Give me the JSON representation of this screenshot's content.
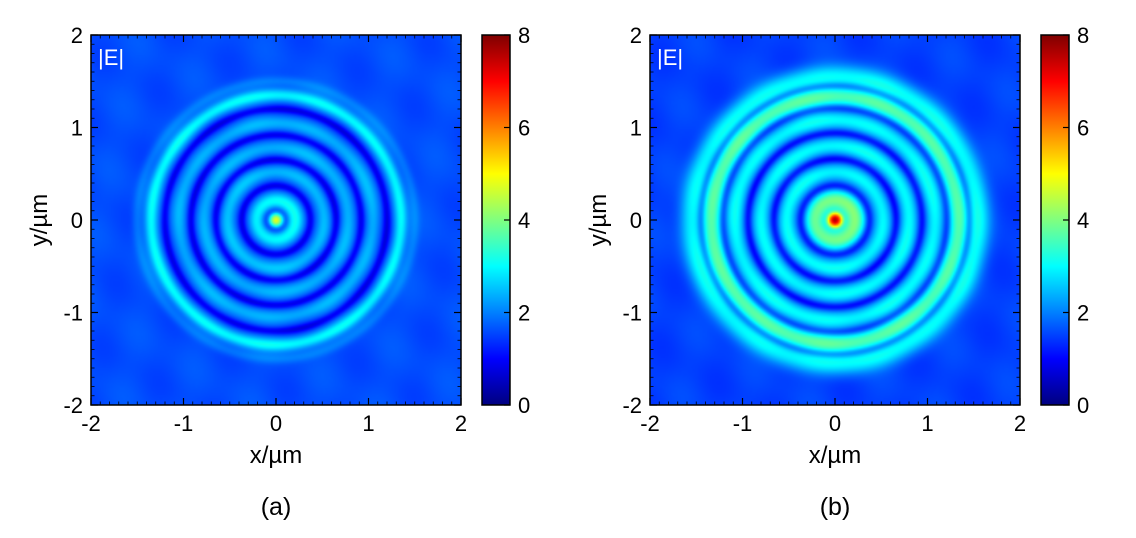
{
  "chart_data": [
    {
      "type": "heatmap",
      "panel_label": "(a)",
      "field_label": "|E|",
      "xlabel": "x/µm",
      "ylabel": "y/µm",
      "xlim": [
        -2,
        2
      ],
      "ylim": [
        -2,
        2
      ],
      "xticks": [
        -2,
        -1,
        0,
        1,
        2
      ],
      "yticks": [
        -2,
        -1,
        0,
        1,
        2
      ],
      "colorbar": {
        "min": 0,
        "max": 8,
        "ticks": [
          0,
          2,
          4,
          6,
          8
        ]
      },
      "background_value": 1.6,
      "rings": [
        {
          "radius": 0.0,
          "width": 0.06,
          "peak": 4.8
        },
        {
          "radius": 0.21,
          "width": 0.06,
          "peak": 3.0
        },
        {
          "radius": 0.52,
          "width": 0.055,
          "peak": 2.5
        },
        {
          "radius": 0.78,
          "width": 0.055,
          "peak": 2.4
        },
        {
          "radius": 1.05,
          "width": 0.055,
          "peak": 2.4
        },
        {
          "radius": 1.35,
          "width": 0.05,
          "peak": 3.0
        },
        {
          "radius": 1.5,
          "width": 0.04,
          "peak": 2.0
        }
      ],
      "dark_rings": [
        0.1,
        0.37,
        0.65,
        0.92,
        1.2
      ]
    },
    {
      "type": "heatmap",
      "panel_label": "(b)",
      "field_label": "|E|",
      "xlabel": "x/µm",
      "ylabel": "y/µm",
      "xlim": [
        -2,
        2
      ],
      "ylim": [
        -2,
        2
      ],
      "xticks": [
        -2,
        -1,
        0,
        1,
        2
      ],
      "yticks": [
        -2,
        -1,
        0,
        1,
        2
      ],
      "colorbar": {
        "min": 0,
        "max": 8,
        "ticks": [
          0,
          2,
          4,
          6,
          8
        ]
      },
      "background_value": 1.5,
      "rings": [
        {
          "radius": 0.0,
          "width": 0.07,
          "peak": 7.5
        },
        {
          "radius": 0.22,
          "width": 0.08,
          "peak": 3.9
        },
        {
          "radius": 0.52,
          "width": 0.07,
          "peak": 3.0
        },
        {
          "radius": 0.8,
          "width": 0.07,
          "peak": 3.0
        },
        {
          "radius": 1.08,
          "width": 0.07,
          "peak": 3.0
        },
        {
          "radius": 1.33,
          "width": 0.08,
          "peak": 3.6
        },
        {
          "radius": 1.55,
          "width": 0.09,
          "peak": 3.0
        }
      ],
      "dark_rings": [
        0.1,
        0.37,
        0.66,
        0.94,
        1.21,
        1.45
      ]
    }
  ]
}
